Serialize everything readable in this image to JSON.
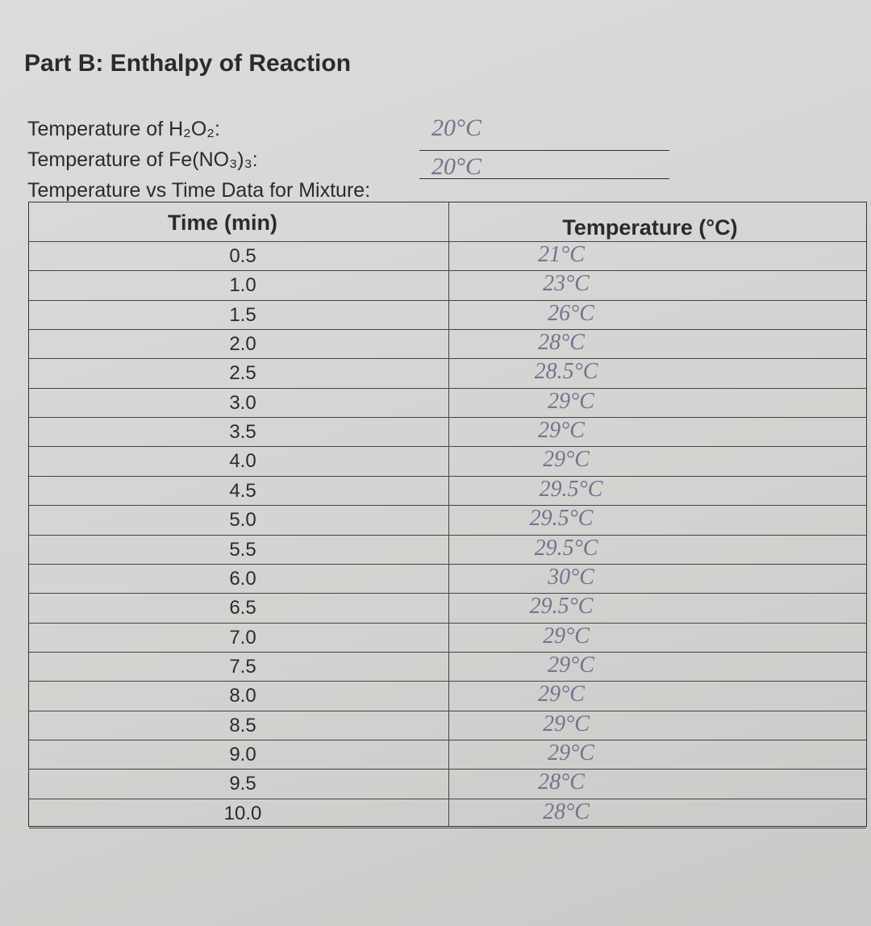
{
  "title": "Part B: Enthalpy of Reaction",
  "fields": [
    {
      "label": "Temperature of H₂O₂:",
      "value": "20°C"
    },
    {
      "label": "Temperature of Fe(NO₃)₃:",
      "value": "20°C"
    }
  ],
  "table_caption": "Temperature vs Time Data for Mixture:",
  "table": {
    "header": [
      "Time (min)",
      "Temperature (°C)"
    ],
    "rows": [
      [
        "0.5",
        "21°C"
      ],
      [
        "1.0",
        "23°C"
      ],
      [
        "1.5",
        "26°C"
      ],
      [
        "2.0",
        "28°C"
      ],
      [
        "2.5",
        "28.5°C"
      ],
      [
        "3.0",
        "29°C"
      ],
      [
        "3.5",
        "29°C"
      ],
      [
        "4.0",
        "29°C"
      ],
      [
        "4.5",
        "29.5°C"
      ],
      [
        "5.0",
        "29.5°C"
      ],
      [
        "5.5",
        "29.5°C"
      ],
      [
        "6.0",
        "30°C"
      ],
      [
        "6.5",
        "29.5°C"
      ],
      [
        "7.0",
        "29°C"
      ],
      [
        "7.5",
        "29°C"
      ],
      [
        "8.0",
        "29°C"
      ],
      [
        "8.5",
        "29°C"
      ],
      [
        "9.0",
        "29°C"
      ],
      [
        "9.5",
        "28°C"
      ],
      [
        "10.0",
        "28°C"
      ]
    ]
  }
}
